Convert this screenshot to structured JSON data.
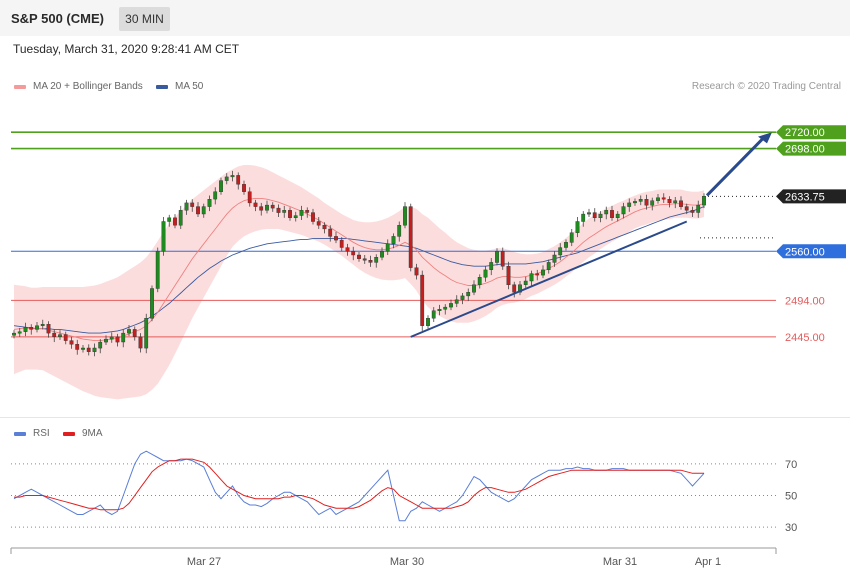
{
  "header": {
    "instrument": "S&P 500 (CME)",
    "interval": "30 MIN"
  },
  "datetime": "Tuesday, March 31, 2020 9:28:41 AM CET",
  "legend": {
    "ma20_label": "MA 20 + Bollinger Bands",
    "ma50_label": "MA 50",
    "rsi_label": "RSI",
    "rsi9_label": "9MA"
  },
  "credit": "Research © 2020 Trading Central",
  "colors": {
    "candle_up": "#1f8a1f",
    "candle_down": "#c41e1e",
    "bollinger": "#fcd7d7",
    "ma20": "#f08080",
    "ma50": "#3a5aa0",
    "resistance": "#4fa01d",
    "pivot": "#2f6fdd",
    "support": "#e55b5b",
    "trend": "#2b4a8c",
    "last_price": "#333333",
    "rsi": "#5b7fd6",
    "rsi9": "#e02020"
  },
  "chart_data": [
    {
      "type": "candlestick",
      "ylim": [
        2340,
        2770
      ],
      "x_ticks": [
        "Mar 27",
        "Mar 30",
        "Mar 31",
        "Apr 1"
      ],
      "levels": [
        {
          "label": "2720.00",
          "value": 2720,
          "kind": "resistance"
        },
        {
          "label": "2698.00",
          "value": 2698,
          "kind": "resistance"
        },
        {
          "label": "2633.75",
          "value": 2633.75,
          "kind": "last"
        },
        {
          "label": "2560.00",
          "value": 2560,
          "kind": "pivot"
        },
        {
          "label": "2494.00",
          "value": 2494,
          "kind": "support"
        },
        {
          "label": "2445.00",
          "value": 2445,
          "kind": "support"
        }
      ],
      "closes": [
        2450,
        2452,
        2458,
        2455,
        2460,
        2462,
        2450,
        2445,
        2448,
        2440,
        2435,
        2428,
        2430,
        2425,
        2430,
        2438,
        2442,
        2445,
        2438,
        2450,
        2455,
        2445,
        2430,
        2470,
        2510,
        2560,
        2600,
        2605,
        2595,
        2615,
        2625,
        2620,
        2610,
        2620,
        2630,
        2640,
        2655,
        2660,
        2662,
        2650,
        2640,
        2625,
        2620,
        2615,
        2622,
        2618,
        2612,
        2615,
        2605,
        2608,
        2615,
        2612,
        2600,
        2595,
        2590,
        2580,
        2575,
        2565,
        2560,
        2555,
        2550,
        2548,
        2545,
        2552,
        2560,
        2570,
        2580,
        2595,
        2620,
        2538,
        2528,
        2460,
        2470,
        2480,
        2482,
        2485,
        2490,
        2495,
        2500,
        2505,
        2515,
        2525,
        2535,
        2545,
        2560,
        2540,
        2515,
        2505,
        2515,
        2520,
        2530,
        2528,
        2535,
        2545,
        2555,
        2565,
        2572,
        2585,
        2600,
        2610,
        2612,
        2605,
        2610,
        2615,
        2605,
        2610,
        2620,
        2625,
        2627,
        2630,
        2622,
        2628,
        2632,
        2630,
        2625,
        2628,
        2620,
        2615,
        2612,
        2622,
        2634
      ],
      "ma20": [
        2455,
        2456,
        2457,
        2456,
        2456,
        2456,
        2454,
        2452,
        2450,
        2448,
        2446,
        2444,
        2442,
        2441,
        2440,
        2440,
        2441,
        2442,
        2443,
        2446,
        2449,
        2452,
        2455,
        2460,
        2468,
        2478,
        2490,
        2502,
        2514,
        2526,
        2538,
        2550,
        2560,
        2570,
        2580,
        2590,
        2600,
        2610,
        2618,
        2624,
        2628,
        2630,
        2631,
        2631,
        2630,
        2628,
        2626,
        2623,
        2620,
        2617,
        2614,
        2610,
        2606,
        2602,
        2597,
        2592,
        2587,
        2582,
        2577,
        2572,
        2568,
        2565,
        2563,
        2562,
        2562,
        2563,
        2565,
        2568,
        2572,
        2568,
        2562,
        2552,
        2545,
        2538,
        2532,
        2527,
        2522,
        2518,
        2516,
        2514,
        2514,
        2515,
        2517,
        2520,
        2524,
        2526,
        2526,
        2525,
        2525,
        2526,
        2528,
        2530,
        2533,
        2537,
        2541,
        2546,
        2552,
        2558,
        2565,
        2572,
        2578,
        2583,
        2588,
        2593,
        2597,
        2601,
        2605,
        2609,
        2613,
        2616,
        2618,
        2620,
        2622,
        2623,
        2623,
        2624,
        2624,
        2623,
        2622,
        2622,
        2624
      ],
      "ma50": [
        2460,
        2459,
        2458,
        2457,
        2456,
        2456,
        2456,
        2455,
        2455,
        2454,
        2453,
        2452,
        2451,
        2450,
        2450,
        2450,
        2451,
        2452,
        2453,
        2455,
        2458,
        2461,
        2464,
        2468,
        2473,
        2478,
        2484,
        2490,
        2497,
        2504,
        2511,
        2518,
        2525,
        2531,
        2537,
        2542,
        2547,
        2551,
        2555,
        2558,
        2561,
        2564,
        2566,
        2568,
        2570,
        2571,
        2572,
        2573,
        2574,
        2575,
        2576,
        2576,
        2577,
        2577,
        2577,
        2577,
        2577,
        2577,
        2577,
        2576,
        2575,
        2574,
        2573,
        2572,
        2571,
        2570,
        2569,
        2568,
        2567,
        2566,
        2564,
        2561,
        2558,
        2555,
        2552,
        2549,
        2546,
        2544,
        2542,
        2541,
        2540,
        2540,
        2540,
        2541,
        2542,
        2543,
        2543,
        2543,
        2543,
        2543,
        2544,
        2545,
        2546,
        2548,
        2550,
        2552,
        2554,
        2556,
        2558,
        2561,
        2564,
        2567,
        2570,
        2573,
        2576,
        2579,
        2582,
        2585,
        2588,
        2591,
        2594,
        2597,
        2600,
        2603,
        2606,
        2608,
        2610,
        2612,
        2614,
        2617,
        2620
      ],
      "boll_half_width": [
        60,
        58,
        56,
        55,
        55,
        56,
        58,
        60,
        62,
        64,
        66,
        68,
        70,
        72,
        74,
        76,
        78,
        80,
        82,
        84,
        86,
        88,
        90,
        92,
        94,
        96,
        96,
        95,
        92,
        88,
        84,
        80,
        76,
        72,
        68,
        64,
        60,
        56,
        52,
        50,
        48,
        46,
        44,
        42,
        40,
        38,
        36,
        35,
        34,
        33,
        32,
        31,
        30,
        29,
        28,
        28,
        28,
        28,
        29,
        30,
        32,
        34,
        36,
        38,
        40,
        42,
        44,
        46,
        48,
        52,
        55,
        58,
        60,
        60,
        59,
        58,
        56,
        54,
        52,
        50,
        48,
        46,
        44,
        42,
        40,
        38,
        36,
        34,
        32,
        30,
        28,
        27,
        26,
        26,
        26,
        26,
        26,
        26,
        26,
        26,
        26,
        26,
        25,
        25,
        24,
        24,
        23,
        23,
        22,
        22,
        22,
        21,
        21,
        20,
        20,
        19,
        19,
        18,
        18,
        18,
        18
      ]
    },
    {
      "type": "line",
      "ylim": [
        20,
        80
      ],
      "y_ticks": [
        "70",
        "50",
        "30"
      ],
      "series": [
        {
          "name": "RSI",
          "values": [
            48,
            50,
            52,
            54,
            52,
            50,
            48,
            46,
            44,
            42,
            40,
            38,
            38,
            40,
            42,
            44,
            40,
            38,
            40,
            50,
            60,
            70,
            76,
            78,
            76,
            74,
            72,
            72,
            72,
            72,
            73,
            72,
            70,
            68,
            60,
            52,
            48,
            52,
            56,
            50,
            46,
            44,
            44,
            43,
            45,
            48,
            50,
            52,
            52,
            50,
            48,
            46,
            42,
            38,
            40,
            42,
            38,
            40,
            42,
            44,
            46,
            50,
            54,
            58,
            62,
            66,
            50,
            34,
            34,
            40,
            42,
            46,
            44,
            42,
            40,
            42,
            44,
            46,
            50,
            56,
            62,
            60,
            56,
            52,
            50,
            48,
            46,
            48,
            52,
            56,
            60,
            62,
            64,
            66,
            66,
            66,
            67,
            67,
            68,
            67,
            67,
            66,
            66,
            66,
            67,
            67,
            67,
            66,
            66,
            66,
            66,
            66,
            66,
            66,
            66,
            65,
            64,
            60,
            56,
            60,
            64
          ]
        },
        {
          "name": "9MA",
          "values": [
            49,
            49,
            50,
            50,
            50,
            50,
            49,
            48,
            47,
            46,
            45,
            44,
            43,
            42,
            42,
            41,
            41,
            41,
            41,
            42,
            45,
            50,
            55,
            60,
            65,
            68,
            70,
            72,
            72,
            73,
            73,
            73,
            72,
            71,
            68,
            64,
            60,
            56,
            54,
            52,
            50,
            49,
            48,
            48,
            48,
            48,
            48,
            49,
            49,
            50,
            50,
            49,
            48,
            46,
            44,
            43,
            42,
            42,
            42,
            42,
            43,
            45,
            47,
            50,
            53,
            55,
            54,
            50,
            48,
            46,
            44,
            42,
            42,
            42,
            42,
            42,
            42,
            43,
            44,
            46,
            50,
            53,
            55,
            55,
            54,
            53,
            52,
            52,
            53,
            54,
            56,
            58,
            60,
            62,
            63,
            64,
            65,
            66,
            66,
            66,
            66,
            66,
            66,
            66,
            66,
            66,
            66,
            66,
            66,
            66,
            66,
            66,
            66,
            66,
            66,
            66,
            66,
            65,
            64,
            64,
            64
          ]
        }
      ]
    }
  ]
}
